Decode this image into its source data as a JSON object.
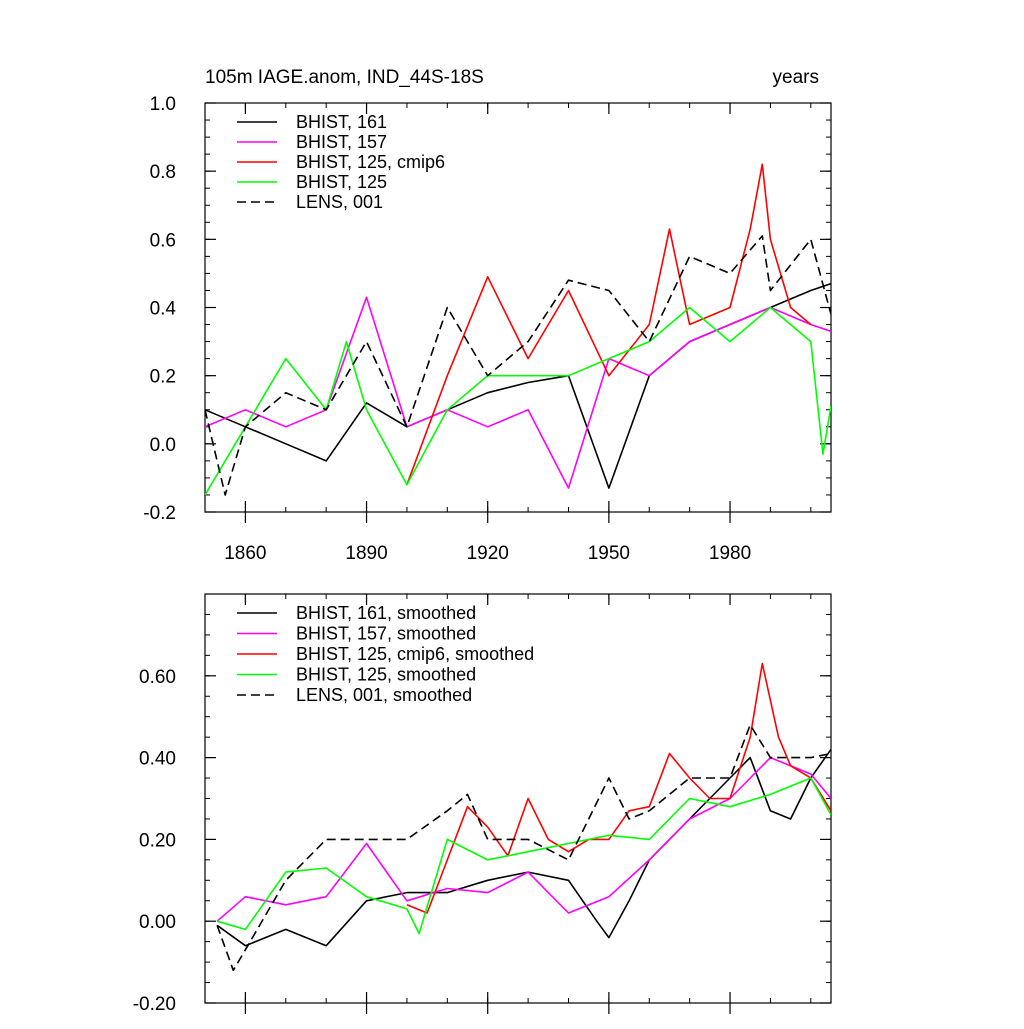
{
  "chart_data": [
    {
      "type": "line",
      "title": "105m IAGE.anom, IND_44S-18S",
      "title_right": "years",
      "xlim": [
        1850,
        2005
      ],
      "ylim": [
        -0.2,
        1.0
      ],
      "x_ticks": [
        1860,
        1890,
        1920,
        1950,
        1980
      ],
      "x_tick_labels": [
        "1860",
        "1890",
        "1920",
        "1950",
        "1980"
      ],
      "y_ticks": [
        -0.2,
        0.0,
        0.2,
        0.4,
        0.6,
        0.8,
        1.0
      ],
      "y_tick_labels": [
        "-0.2",
        "0.0",
        "0.2",
        "0.4",
        "0.6",
        "0.8",
        "1.0"
      ],
      "grid": false,
      "legend_position": "top-left",
      "series": [
        {
          "name": "BHIST, 161",
          "color": "#000000",
          "dash": "solid",
          "x": [
            1850,
            1860,
            1870,
            1880,
            1890,
            1900,
            1910,
            1920,
            1930,
            1940,
            1950,
            1960,
            1970,
            1980,
            1990,
            2000,
            2005
          ],
          "y": [
            0.1,
            0.05,
            0.0,
            -0.05,
            0.12,
            0.05,
            0.1,
            0.15,
            0.18,
            0.2,
            -0.13,
            0.2,
            0.3,
            0.35,
            0.4,
            0.45,
            0.47
          ]
        },
        {
          "name": "BHIST, 157",
          "color": "#ff00ff",
          "dash": "solid",
          "x": [
            1850,
            1860,
            1870,
            1880,
            1890,
            1900,
            1910,
            1920,
            1930,
            1940,
            1950,
            1960,
            1970,
            1980,
            1990,
            2000,
            2005
          ],
          "y": [
            0.05,
            0.1,
            0.05,
            0.1,
            0.43,
            0.05,
            0.1,
            0.05,
            0.1,
            -0.13,
            0.25,
            0.2,
            0.3,
            0.35,
            0.4,
            0.35,
            0.33
          ]
        },
        {
          "name": "BHIST, 125, cmip6",
          "color": "#ff0000",
          "dash": "solid",
          "x": [
            1900,
            1910,
            1920,
            1930,
            1940,
            1950,
            1960,
            1965,
            1970,
            1980,
            1985,
            1988,
            1990,
            1995,
            2000
          ],
          "y": [
            -0.12,
            0.2,
            0.49,
            0.25,
            0.45,
            0.2,
            0.35,
            0.63,
            0.35,
            0.4,
            0.63,
            0.82,
            0.6,
            0.4,
            0.35
          ]
        },
        {
          "name": "BHIST, 125",
          "color": "#00ff00",
          "dash": "solid",
          "x": [
            1850,
            1860,
            1870,
            1880,
            1885,
            1890,
            1900,
            1910,
            1920,
            1930,
            1940,
            1950,
            1960,
            1970,
            1980,
            1990,
            2000,
            2003,
            2005
          ],
          "y": [
            -0.15,
            0.05,
            0.25,
            0.1,
            0.3,
            0.1,
            -0.12,
            0.1,
            0.2,
            0.2,
            0.2,
            0.25,
            0.3,
            0.4,
            0.3,
            0.4,
            0.3,
            -0.03,
            0.11
          ]
        },
        {
          "name": "LENS, 001",
          "color": "#000000",
          "dash": "dashed",
          "x": [
            1850,
            1855,
            1860,
            1870,
            1880,
            1890,
            1900,
            1910,
            1920,
            1930,
            1940,
            1950,
            1960,
            1970,
            1980,
            1988,
            1990,
            2000,
            2005
          ],
          "y": [
            0.1,
            -0.15,
            0.05,
            0.15,
            0.1,
            0.3,
            0.05,
            0.4,
            0.2,
            0.3,
            0.48,
            0.45,
            0.3,
            0.55,
            0.5,
            0.61,
            0.45,
            0.6,
            0.38
          ]
        }
      ]
    },
    {
      "type": "line",
      "title": "",
      "xlim": [
        1850,
        2005
      ],
      "ylim": [
        -0.2,
        0.8
      ],
      "x_ticks": [
        1860,
        1890,
        1920,
        1950,
        1980
      ],
      "y_ticks": [
        -0.2,
        0.0,
        0.2,
        0.4,
        0.6
      ],
      "y_tick_labels": [
        "-0.20",
        "0.00",
        "0.20",
        "0.40",
        "0.60"
      ],
      "grid": false,
      "legend_position": "top-left",
      "series": [
        {
          "name": "BHIST, 161, smoothed",
          "color": "#000000",
          "dash": "solid",
          "x": [
            1853,
            1860,
            1870,
            1880,
            1890,
            1900,
            1910,
            1920,
            1930,
            1940,
            1947,
            1950,
            1955,
            1960,
            1970,
            1980,
            1985,
            1990,
            1995,
            2000,
            2005
          ],
          "y": [
            -0.01,
            -0.06,
            -0.02,
            -0.06,
            0.05,
            0.07,
            0.07,
            0.1,
            0.12,
            0.1,
            0.0,
            -0.04,
            0.05,
            0.15,
            0.25,
            0.35,
            0.4,
            0.27,
            0.25,
            0.35,
            0.42
          ]
        },
        {
          "name": "BHIST, 157, smoothed",
          "color": "#ff00ff",
          "dash": "solid",
          "x": [
            1853,
            1860,
            1870,
            1880,
            1890,
            1900,
            1910,
            1920,
            1930,
            1940,
            1950,
            1960,
            1970,
            1980,
            1990,
            2000,
            2005
          ],
          "y": [
            0.0,
            0.06,
            0.04,
            0.06,
            0.19,
            0.05,
            0.08,
            0.07,
            0.12,
            0.02,
            0.06,
            0.15,
            0.25,
            0.3,
            0.4,
            0.36,
            0.3
          ]
        },
        {
          "name": "BHIST, 125, cmip6, smoothed",
          "color": "#ff0000",
          "dash": "solid",
          "x": [
            1900,
            1905,
            1910,
            1915,
            1920,
            1925,
            1930,
            1935,
            1940,
            1945,
            1950,
            1955,
            1960,
            1965,
            1970,
            1975,
            1980,
            1985,
            1988,
            1992,
            1995,
            2000,
            2005
          ],
          "y": [
            0.04,
            0.02,
            0.15,
            0.28,
            0.23,
            0.16,
            0.3,
            0.2,
            0.17,
            0.2,
            0.2,
            0.27,
            0.28,
            0.41,
            0.35,
            0.3,
            0.3,
            0.45,
            0.63,
            0.45,
            0.38,
            0.35,
            0.27
          ]
        },
        {
          "name": "BHIST, 125, smoothed",
          "color": "#00ff00",
          "dash": "solid",
          "x": [
            1853,
            1860,
            1870,
            1880,
            1890,
            1900,
            1903,
            1910,
            1920,
            1930,
            1940,
            1950,
            1960,
            1970,
            1980,
            1990,
            2000,
            2005
          ],
          "y": [
            0.0,
            -0.02,
            0.12,
            0.13,
            0.06,
            0.03,
            -0.03,
            0.2,
            0.15,
            0.17,
            0.19,
            0.21,
            0.2,
            0.3,
            0.28,
            0.31,
            0.35,
            0.26
          ]
        },
        {
          "name": "LENS, 001, smoothed",
          "color": "#000000",
          "dash": "dashed",
          "x": [
            1853,
            1857,
            1860,
            1870,
            1880,
            1890,
            1900,
            1910,
            1915,
            1920,
            1930,
            1940,
            1950,
            1955,
            1960,
            1970,
            1980,
            1985,
            1990,
            2000,
            2005
          ],
          "y": [
            -0.01,
            -0.12,
            -0.07,
            0.1,
            0.2,
            0.2,
            0.2,
            0.27,
            0.31,
            0.2,
            0.2,
            0.15,
            0.35,
            0.25,
            0.27,
            0.35,
            0.35,
            0.48,
            0.4,
            0.4,
            0.41
          ]
        }
      ]
    }
  ]
}
